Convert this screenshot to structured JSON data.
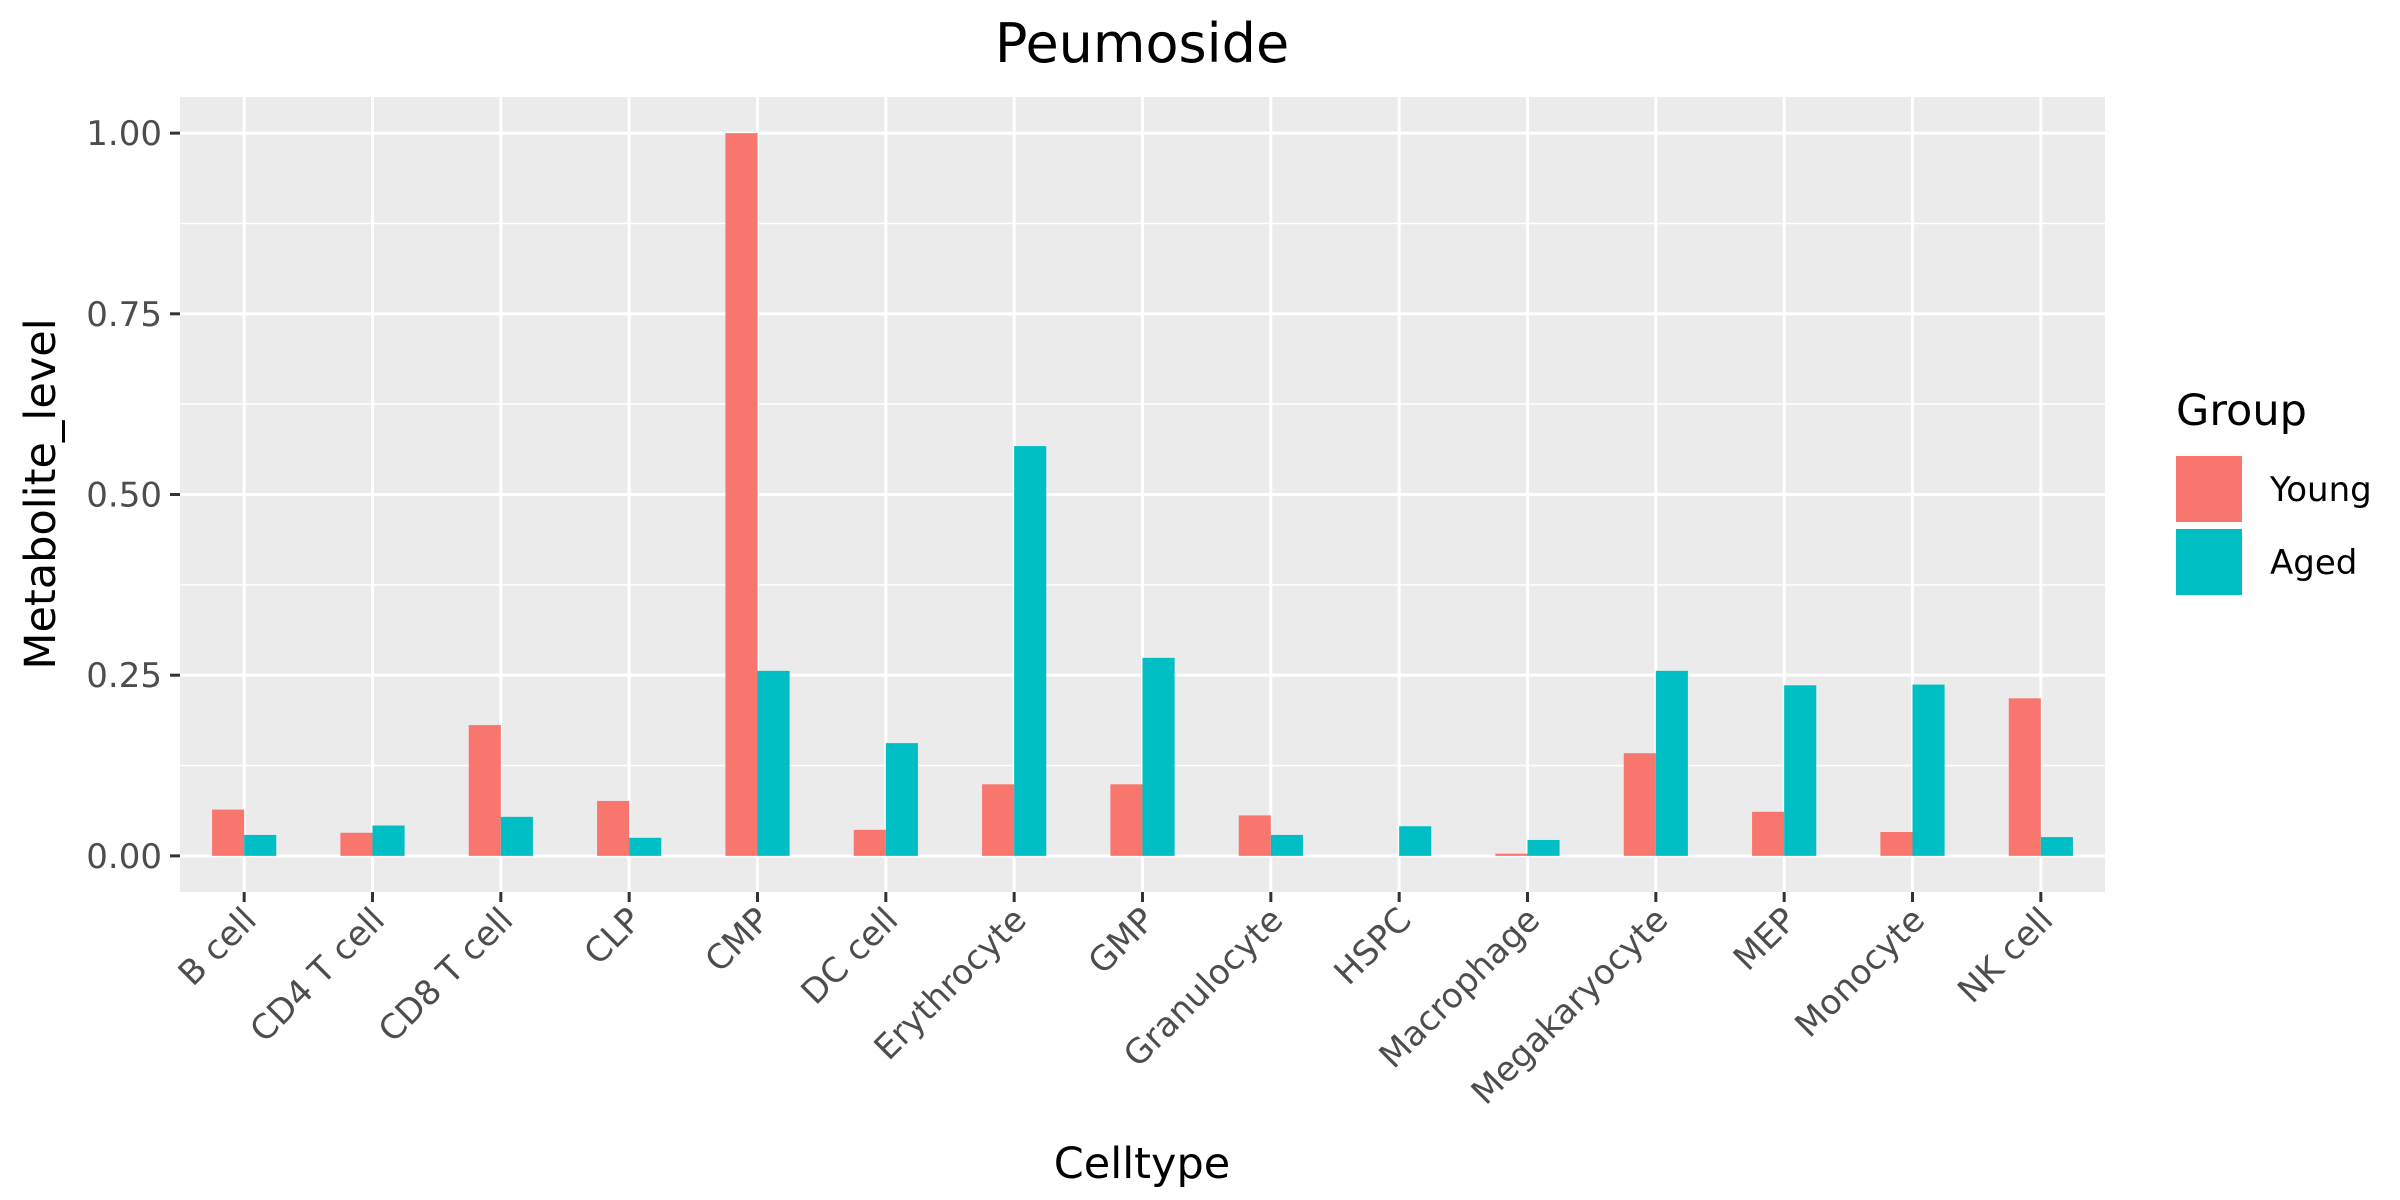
{
  "chart_data": {
    "type": "bar",
    "title": "Peumoside",
    "xlabel": "Celltype",
    "ylabel": "Metabolite_level",
    "categories": [
      "B cell",
      "CD4 T cell",
      "CD8 T cell",
      "CLP",
      "CMP",
      "DC cell",
      "Erythrocyte",
      "GMP",
      "Granulocyte",
      "HSPC",
      "Macrophage",
      "Megakaryocyte",
      "MEP",
      "Monocyte",
      "NK cell"
    ],
    "series": [
      {
        "name": "Young",
        "color": "#F8766D",
        "values": [
          0.064,
          0.032,
          0.181,
          0.076,
          1.0,
          0.036,
          0.099,
          0.099,
          0.056,
          0.0,
          0.003,
          0.142,
          0.061,
          0.033,
          0.218
        ]
      },
      {
        "name": "Aged",
        "color": "#00BFC4",
        "values": [
          0.029,
          0.042,
          0.054,
          0.025,
          0.256,
          0.156,
          0.567,
          0.274,
          0.029,
          0.041,
          0.022,
          0.256,
          0.236,
          0.237,
          0.026
        ]
      }
    ],
    "ylim": [
      -0.05,
      1.05
    ],
    "yticks": [
      0.0,
      0.25,
      0.5,
      0.75,
      1.0
    ],
    "ytick_labels": [
      "0.00",
      "0.25",
      "0.50",
      "0.75",
      "1.00"
    ],
    "grid": true,
    "legend": {
      "title": "Group",
      "position": "right"
    },
    "panel_background": "#EBEBEB",
    "grid_color": "#FFFFFF"
  }
}
